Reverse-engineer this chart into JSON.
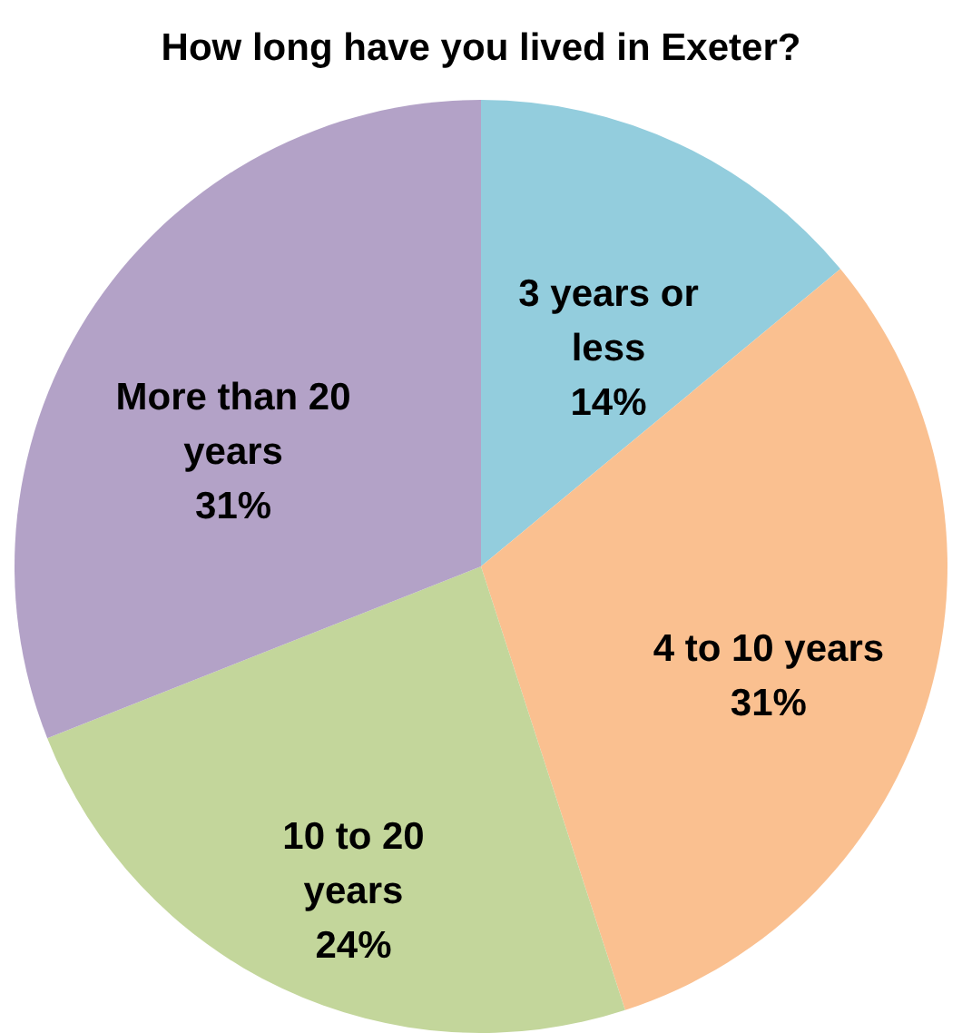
{
  "chart_data": {
    "type": "pie",
    "title": "How long have you lived in Exeter?",
    "categories": [
      "3 years or less",
      "4 to 10 years",
      "10 to 20 years",
      "More than 20 years"
    ],
    "values": [
      14,
      31,
      24,
      31
    ],
    "value_labels": [
      "14%",
      "31%",
      "24%",
      "31%"
    ],
    "colors": [
      "#93cddd",
      "#fac090",
      "#c3d69b",
      "#b3a2c7"
    ],
    "legend": false
  }
}
